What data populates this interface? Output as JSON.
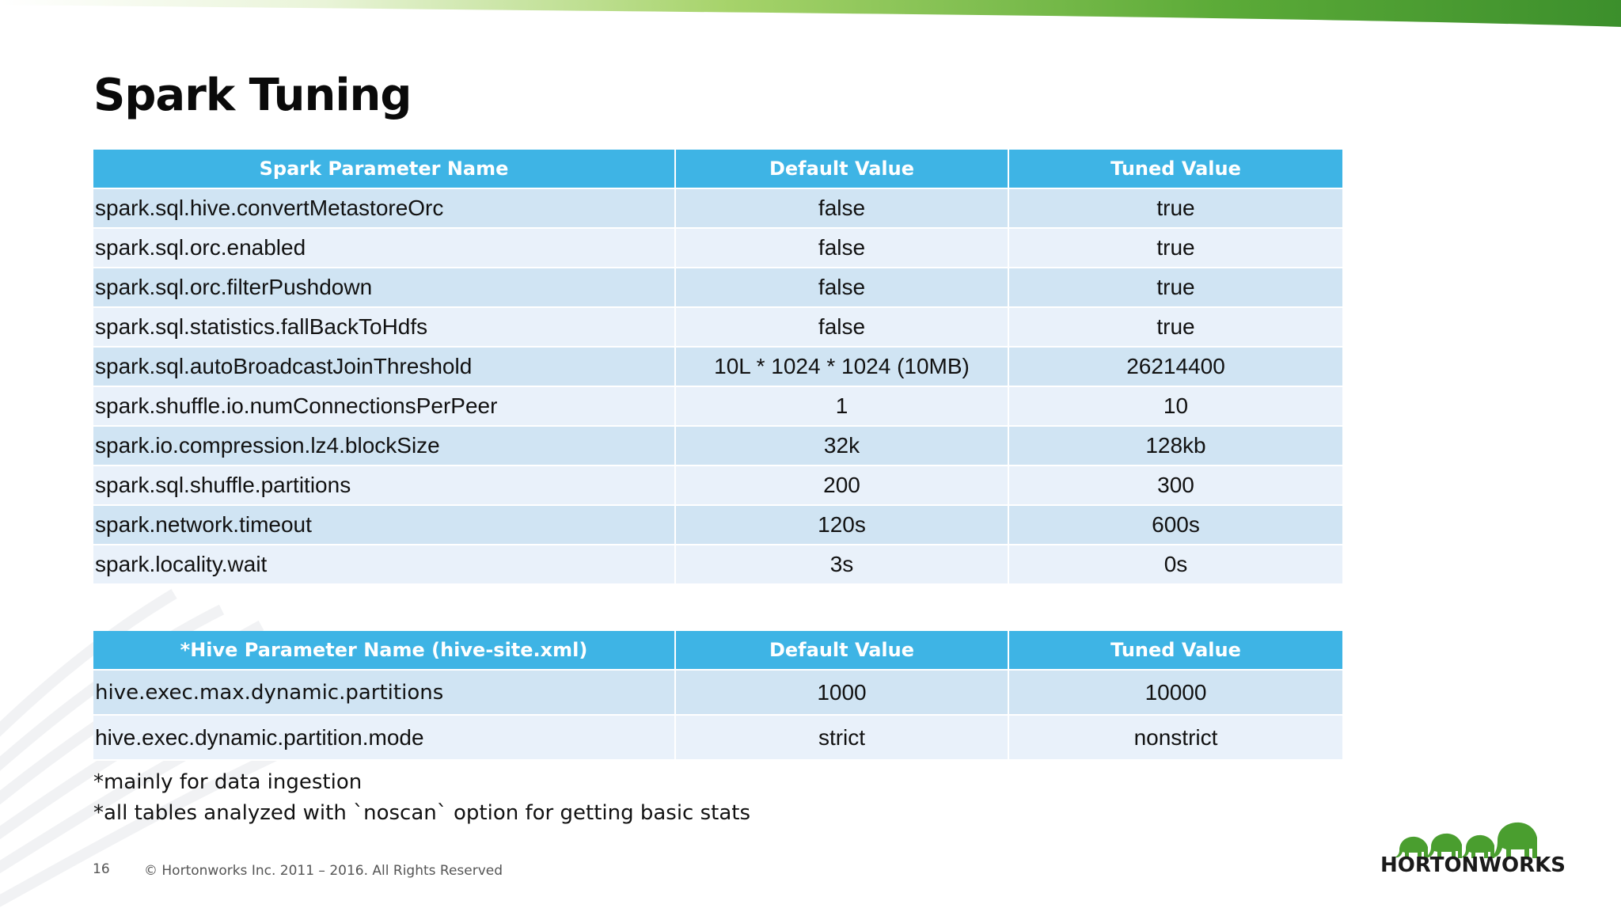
{
  "title": "Spark Tuning",
  "spark_table": {
    "headers": [
      "Spark Parameter Name",
      "Default Value",
      "Tuned Value"
    ],
    "rows": [
      [
        "spark.sql.hive.convertMetastoreOrc",
        "false",
        "true"
      ],
      [
        "spark.sql.orc.enabled",
        "false",
        "true"
      ],
      [
        "spark.sql.orc.filterPushdown",
        "false",
        "true"
      ],
      [
        "spark.sql.statistics.fallBackToHdfs",
        "false",
        "true"
      ],
      [
        "spark.sql.autoBroadcastJoinThreshold",
        "10L * 1024 * 1024 (10MB)",
        "26214400"
      ],
      [
        "spark.shuffle.io.numConnectionsPerPeer",
        "1",
        "10"
      ],
      [
        "spark.io.compression.lz4.blockSize",
        "32k",
        "128kb"
      ],
      [
        "spark.sql.shuffle.partitions",
        "200",
        "300"
      ],
      [
        "spark.network.timeout",
        "120s",
        "600s"
      ],
      [
        "spark.locality.wait",
        "3s",
        "0s"
      ]
    ]
  },
  "hive_table": {
    "headers": [
      "*Hive Parameter Name (hive-site.xml)",
      "Default Value",
      "Tuned Value"
    ],
    "rows": [
      [
        "hive.exec.max.dynamic.partitions",
        "1000",
        "10000"
      ],
      [
        "hive.exec.dynamic.partition.mode",
        "strict",
        "nonstrict"
      ]
    ]
  },
  "notes": [
    "*mainly for data ingestion",
    "*all tables analyzed with `noscan` option for getting basic stats"
  ],
  "footer": {
    "page_number": "16",
    "copyright": "© Hortonworks Inc. 2011 – 2016. All Rights Reserved"
  },
  "logo": {
    "text": "HORTONWORKS",
    "icon": "elephant-herd-icon"
  },
  "colors": {
    "header_bg": "#3eb4e5",
    "row_odd": "#d0e4f3",
    "row_even": "#e9f1fa",
    "accent_green": "#4a9e2f"
  }
}
